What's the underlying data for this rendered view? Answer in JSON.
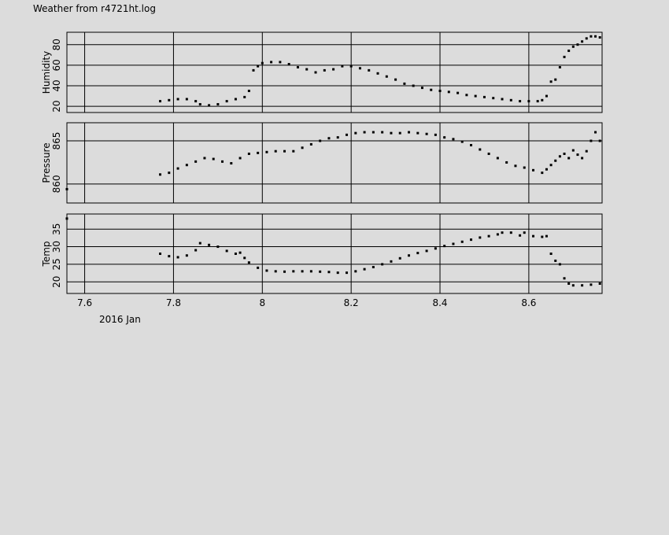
{
  "title": "Weather from r4721ht.log",
  "date_label": "2016 Jan",
  "chart_data": {
    "type": "scatter",
    "x_ticks": [
      7.6,
      7.8,
      8.0,
      8.2,
      8.4,
      8.6
    ],
    "x_tick_labels": [
      "7.6",
      "7.8",
      "8",
      "8.2",
      "8.4",
      "8.6"
    ],
    "xlim": [
      7.56,
      8.765
    ],
    "grid": true,
    "panels": [
      {
        "name": "Humidity",
        "ylabel": "Humidity",
        "ylim": [
          14,
          92
        ],
        "y_ticks": [
          20,
          40,
          60,
          80
        ],
        "y_tick_labels": [
          "20",
          "40",
          "60",
          "80"
        ],
        "points": [
          [
            7.77,
            25
          ],
          [
            7.79,
            26
          ],
          [
            7.81,
            27
          ],
          [
            7.83,
            27
          ],
          [
            7.85,
            25
          ],
          [
            7.86,
            22
          ],
          [
            7.88,
            21
          ],
          [
            7.9,
            22
          ],
          [
            7.92,
            25
          ],
          [
            7.94,
            27
          ],
          [
            7.96,
            29
          ],
          [
            7.97,
            35
          ],
          [
            7.98,
            55
          ],
          [
            7.99,
            59
          ],
          [
            8.0,
            62
          ],
          [
            8.02,
            63
          ],
          [
            8.04,
            63
          ],
          [
            8.06,
            61
          ],
          [
            8.08,
            58
          ],
          [
            8.1,
            56
          ],
          [
            8.12,
            53
          ],
          [
            8.14,
            55
          ],
          [
            8.16,
            56
          ],
          [
            8.18,
            59
          ],
          [
            8.2,
            59
          ],
          [
            8.22,
            57
          ],
          [
            8.24,
            55
          ],
          [
            8.26,
            52
          ],
          [
            8.28,
            49
          ],
          [
            8.3,
            46
          ],
          [
            8.32,
            42
          ],
          [
            8.34,
            40
          ],
          [
            8.36,
            38
          ],
          [
            8.38,
            36
          ],
          [
            8.4,
            35
          ],
          [
            8.42,
            34
          ],
          [
            8.44,
            33
          ],
          [
            8.46,
            31
          ],
          [
            8.48,
            30
          ],
          [
            8.5,
            29
          ],
          [
            8.52,
            28
          ],
          [
            8.54,
            27
          ],
          [
            8.56,
            26
          ],
          [
            8.58,
            25
          ],
          [
            8.6,
            25
          ],
          [
            8.62,
            25
          ],
          [
            8.63,
            26
          ],
          [
            8.64,
            30
          ],
          [
            8.65,
            44
          ],
          [
            8.66,
            46
          ],
          [
            8.67,
            58
          ],
          [
            8.68,
            68
          ],
          [
            8.69,
            74
          ],
          [
            8.7,
            78
          ],
          [
            8.71,
            80
          ],
          [
            8.72,
            83
          ],
          [
            8.73,
            86
          ],
          [
            8.74,
            88
          ],
          [
            8.75,
            88
          ],
          [
            8.76,
            87
          ]
        ]
      },
      {
        "name": "Pressure",
        "ylabel": "Pressure",
        "ylim": [
          857.8,
          867.1
        ],
        "y_ticks": [
          860,
          865
        ],
        "y_tick_labels": [
          "860",
          "865"
        ],
        "points": [
          [
            7.56,
            859.4
          ],
          [
            7.77,
            861.1
          ],
          [
            7.79,
            861.3
          ],
          [
            7.81,
            861.8
          ],
          [
            7.83,
            862.2
          ],
          [
            7.85,
            862.6
          ],
          [
            7.87,
            863.0
          ],
          [
            7.89,
            862.9
          ],
          [
            7.91,
            862.6
          ],
          [
            7.93,
            862.4
          ],
          [
            7.95,
            863.0
          ],
          [
            7.97,
            863.5
          ],
          [
            7.99,
            863.6
          ],
          [
            8.01,
            863.7
          ],
          [
            8.03,
            863.8
          ],
          [
            8.05,
            863.8
          ],
          [
            8.07,
            863.8
          ],
          [
            8.09,
            864.2
          ],
          [
            8.11,
            864.6
          ],
          [
            8.13,
            865.0
          ],
          [
            8.15,
            865.3
          ],
          [
            8.17,
            865.4
          ],
          [
            8.19,
            865.7
          ],
          [
            8.21,
            865.9
          ],
          [
            8.23,
            866.0
          ],
          [
            8.25,
            866.0
          ],
          [
            8.27,
            866.0
          ],
          [
            8.29,
            865.9
          ],
          [
            8.31,
            865.9
          ],
          [
            8.33,
            866.0
          ],
          [
            8.35,
            865.9
          ],
          [
            8.37,
            865.8
          ],
          [
            8.39,
            865.7
          ],
          [
            8.41,
            865.4
          ],
          [
            8.43,
            865.2
          ],
          [
            8.45,
            864.9
          ],
          [
            8.47,
            864.5
          ],
          [
            8.49,
            864.0
          ],
          [
            8.51,
            863.5
          ],
          [
            8.53,
            863.0
          ],
          [
            8.55,
            862.5
          ],
          [
            8.57,
            862.1
          ],
          [
            8.59,
            861.9
          ],
          [
            8.61,
            861.6
          ],
          [
            8.63,
            861.3
          ],
          [
            8.64,
            861.7
          ],
          [
            8.65,
            862.2
          ],
          [
            8.66,
            862.7
          ],
          [
            8.67,
            863.2
          ],
          [
            8.68,
            863.5
          ],
          [
            8.69,
            863.0
          ],
          [
            8.7,
            863.9
          ],
          [
            8.71,
            863.4
          ],
          [
            8.72,
            863.0
          ],
          [
            8.73,
            863.8
          ],
          [
            8.74,
            865.0
          ],
          [
            8.75,
            866.0
          ],
          [
            8.76,
            865.0
          ]
        ]
      },
      {
        "name": "Temp",
        "ylabel": "Temp",
        "ylim": [
          16.7,
          39.3
        ],
        "y_ticks": [
          20,
          25,
          30,
          35
        ],
        "y_tick_labels": [
          "20",
          "25",
          "30",
          "35"
        ],
        "points": [
          [
            7.56,
            38.0
          ],
          [
            7.77,
            28.0
          ],
          [
            7.79,
            27.3
          ],
          [
            7.81,
            27.0
          ],
          [
            7.83,
            27.5
          ],
          [
            7.85,
            29.0
          ],
          [
            7.86,
            31.0
          ],
          [
            7.88,
            30.5
          ],
          [
            7.9,
            30.0
          ],
          [
            7.92,
            28.8
          ],
          [
            7.94,
            28.0
          ],
          [
            7.95,
            28.3
          ],
          [
            7.96,
            26.8
          ],
          [
            7.97,
            25.5
          ],
          [
            7.99,
            24.0
          ],
          [
            8.01,
            23.2
          ],
          [
            8.03,
            23.0
          ],
          [
            8.05,
            22.9
          ],
          [
            8.07,
            23.0
          ],
          [
            8.09,
            23.0
          ],
          [
            8.11,
            23.0
          ],
          [
            8.13,
            22.9
          ],
          [
            8.15,
            22.8
          ],
          [
            8.17,
            22.6
          ],
          [
            8.19,
            22.6
          ],
          [
            8.21,
            23.0
          ],
          [
            8.23,
            23.6
          ],
          [
            8.25,
            24.2
          ],
          [
            8.27,
            25.0
          ],
          [
            8.29,
            25.8
          ],
          [
            8.31,
            26.7
          ],
          [
            8.33,
            27.5
          ],
          [
            8.35,
            28.2
          ],
          [
            8.37,
            28.8
          ],
          [
            8.39,
            29.5
          ],
          [
            8.41,
            30.2
          ],
          [
            8.43,
            30.8
          ],
          [
            8.45,
            31.4
          ],
          [
            8.47,
            32.0
          ],
          [
            8.49,
            32.6
          ],
          [
            8.51,
            33.0
          ],
          [
            8.53,
            33.5
          ],
          [
            8.54,
            34.0
          ],
          [
            8.56,
            34.0
          ],
          [
            8.58,
            33.2
          ],
          [
            8.59,
            34.0
          ],
          [
            8.61,
            33.0
          ],
          [
            8.63,
            32.8
          ],
          [
            8.64,
            33.0
          ],
          [
            8.65,
            28.0
          ],
          [
            8.66,
            26.0
          ],
          [
            8.67,
            25.0
          ],
          [
            8.68,
            21.0
          ],
          [
            8.69,
            19.5
          ],
          [
            8.7,
            19.0
          ],
          [
            8.72,
            19.0
          ],
          [
            8.74,
            19.2
          ],
          [
            8.76,
            19.5
          ]
        ]
      }
    ]
  }
}
